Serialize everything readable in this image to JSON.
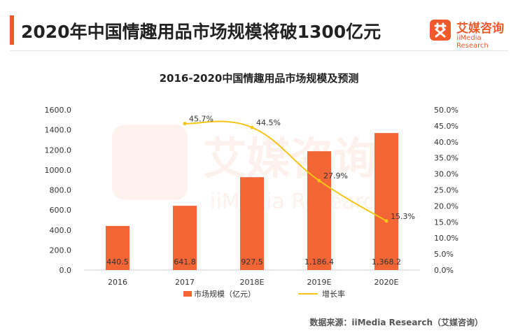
{
  "page": {
    "title": "2020年中国情趣用品市场规模将破1300亿元",
    "logo_cn": "艾媒咨询",
    "logo_en": "iiMedia Research",
    "source": "数据来源：iiMedia Research（艾媒咨询）"
  },
  "chart_data": {
    "type": "bar",
    "title": "2016-2020中国情趣用品市场规模及预测",
    "categories": [
      "2016",
      "2017",
      "2018E",
      "2019E",
      "2020E"
    ],
    "series": [
      {
        "name": "市场规模（亿元）",
        "type": "bar",
        "axis": "left",
        "values": [
          440.5,
          641.8,
          927.5,
          1186.4,
          1368.2
        ],
        "labels": [
          "440.5",
          "641.8",
          "927.5",
          "1,186.4",
          "1,368.2"
        ],
        "color": "#f26535"
      },
      {
        "name": "增长率",
        "type": "line",
        "axis": "right",
        "values": [
          null,
          45.7,
          44.5,
          27.9,
          15.3
        ],
        "labels": [
          "",
          "45.7%",
          "44.5%",
          "27.9%",
          "15.3%"
        ],
        "color": "#f5c518"
      }
    ],
    "y_left": {
      "range": [
        0,
        1600
      ],
      "ticks": [
        "0.0",
        "200.0",
        "400.0",
        "600.0",
        "800.0",
        "1000.0",
        "1200.0",
        "1400.0",
        "1600.0"
      ]
    },
    "y_right": {
      "range": [
        0,
        50
      ],
      "ticks": [
        "0.0%",
        "5.0%",
        "10.0%",
        "15.0%",
        "20.0%",
        "25.0%",
        "30.0%",
        "35.0%",
        "40.0%",
        "45.0%",
        "50.0%"
      ]
    },
    "grid": false,
    "legend_position": "bottom",
    "watermark_cn": "艾媒咨询",
    "watermark_en": "iiMedia Research"
  }
}
